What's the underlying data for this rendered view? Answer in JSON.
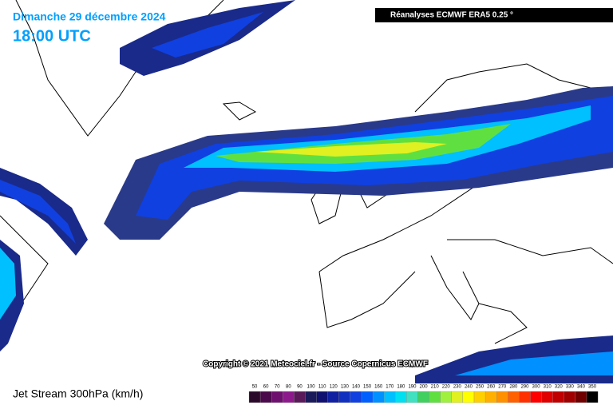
{
  "header": {
    "date": "Dimanche 29 décembre 2024",
    "time": "18:00 UTC",
    "source": "Réanalyses ECMWF ERA5 0.25 °"
  },
  "copyright": "Copyright © 2021 Meteociel.fr - Source Copernicus ECMWF",
  "legend": {
    "title": "Jet Stream 300hPa (km/h)",
    "levels": [
      50,
      60,
      70,
      80,
      90,
      100,
      110,
      120,
      130,
      140,
      150,
      160,
      170,
      180,
      190,
      200,
      210,
      220,
      230,
      240,
      250,
      260,
      270,
      280,
      290,
      300,
      310,
      320,
      330,
      340,
      350
    ],
    "colors": [
      "#2a0a2a",
      "#4b0a4b",
      "#6e106e",
      "#8c1a8c",
      "#5a1a5a",
      "#1a1a5a",
      "#101070",
      "#1020a0",
      "#1030c0",
      "#1040e0",
      "#0060ff",
      "#0090ff",
      "#00c0ff",
      "#00e0f0",
      "#40e0c0",
      "#40d060",
      "#60e040",
      "#a0f040",
      "#e0f020",
      "#ffff00",
      "#ffd000",
      "#ffb000",
      "#ff9000",
      "#ff6000",
      "#ff3000",
      "#ff0000",
      "#e00000",
      "#c00000",
      "#a00000",
      "#700000",
      "#000000"
    ]
  }
}
